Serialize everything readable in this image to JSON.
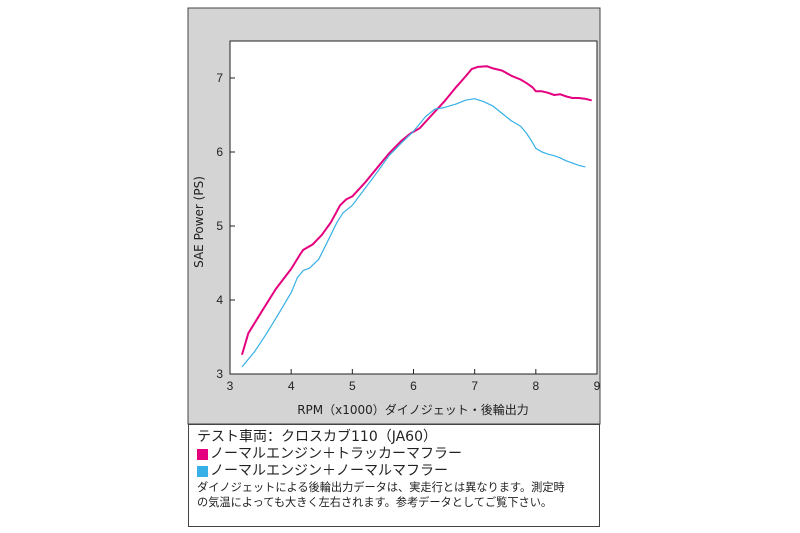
{
  "legend": {
    "title": "テスト車両：クロスカブ110（JA60）",
    "note_line1": "ダイノジェットによる後輪出力データは、実走行とは異なります。測定時",
    "note_line2": "の気温によっても大きく左右されます。参考データとしてご覧下さい。"
  },
  "chart_data": {
    "type": "line",
    "xlabel": "RPM（x1000）ダイノジェット・後輪出力",
    "ylabel": "SAE Power (PS)",
    "xlim": [
      3,
      9
    ],
    "ylim": [
      3,
      7.5
    ],
    "xticks": [
      "3",
      "4",
      "5",
      "6",
      "7",
      "8",
      "9"
    ],
    "yticks": [
      "3",
      "4",
      "5",
      "6",
      "7"
    ],
    "grid": false,
    "legend_position": "bottom",
    "series": [
      {
        "name": "ノーマルエンジン＋トラッカーマフラー",
        "color": "#e4007f",
        "points": [
          [
            3.2,
            3.27
          ],
          [
            3.3,
            3.55
          ],
          [
            3.5,
            3.82
          ],
          [
            3.75,
            4.15
          ],
          [
            4.0,
            4.42
          ],
          [
            4.15,
            4.62
          ],
          [
            4.2,
            4.68
          ],
          [
            4.35,
            4.75
          ],
          [
            4.5,
            4.88
          ],
          [
            4.65,
            5.05
          ],
          [
            4.8,
            5.28
          ],
          [
            4.9,
            5.36
          ],
          [
            5.0,
            5.4
          ],
          [
            5.2,
            5.58
          ],
          [
            5.4,
            5.78
          ],
          [
            5.6,
            5.98
          ],
          [
            5.8,
            6.15
          ],
          [
            5.95,
            6.25
          ],
          [
            6.1,
            6.32
          ],
          [
            6.3,
            6.5
          ],
          [
            6.5,
            6.68
          ],
          [
            6.7,
            6.88
          ],
          [
            6.85,
            7.02
          ],
          [
            6.95,
            7.12
          ],
          [
            7.05,
            7.15
          ],
          [
            7.2,
            7.16
          ],
          [
            7.3,
            7.13
          ],
          [
            7.45,
            7.1
          ],
          [
            7.6,
            7.03
          ],
          [
            7.75,
            6.98
          ],
          [
            7.85,
            6.93
          ],
          [
            7.95,
            6.87
          ],
          [
            8.0,
            6.82
          ],
          [
            8.1,
            6.82
          ],
          [
            8.2,
            6.8
          ],
          [
            8.3,
            6.77
          ],
          [
            8.4,
            6.78
          ],
          [
            8.5,
            6.75
          ],
          [
            8.6,
            6.73
          ],
          [
            8.7,
            6.73
          ],
          [
            8.8,
            6.72
          ],
          [
            8.9,
            6.7
          ]
        ]
      },
      {
        "name": "ノーマルエンジン＋ノーマルマフラー",
        "color": "#36b0e6",
        "points": [
          [
            3.2,
            3.1
          ],
          [
            3.4,
            3.3
          ],
          [
            3.6,
            3.55
          ],
          [
            3.8,
            3.82
          ],
          [
            4.0,
            4.1
          ],
          [
            4.1,
            4.3
          ],
          [
            4.2,
            4.4
          ],
          [
            4.3,
            4.43
          ],
          [
            4.45,
            4.55
          ],
          [
            4.6,
            4.8
          ],
          [
            4.75,
            5.05
          ],
          [
            4.85,
            5.18
          ],
          [
            5.0,
            5.28
          ],
          [
            5.2,
            5.5
          ],
          [
            5.4,
            5.72
          ],
          [
            5.6,
            5.95
          ],
          [
            5.8,
            6.12
          ],
          [
            6.0,
            6.28
          ],
          [
            6.2,
            6.48
          ],
          [
            6.35,
            6.58
          ],
          [
            6.5,
            6.6
          ],
          [
            6.7,
            6.65
          ],
          [
            6.85,
            6.7
          ],
          [
            7.0,
            6.72
          ],
          [
            7.15,
            6.68
          ],
          [
            7.3,
            6.62
          ],
          [
            7.45,
            6.52
          ],
          [
            7.6,
            6.42
          ],
          [
            7.75,
            6.35
          ],
          [
            7.85,
            6.25
          ],
          [
            7.95,
            6.12
          ],
          [
            8.0,
            6.05
          ],
          [
            8.1,
            6.0
          ],
          [
            8.2,
            5.97
          ],
          [
            8.3,
            5.95
          ],
          [
            8.4,
            5.92
          ],
          [
            8.5,
            5.88
          ],
          [
            8.6,
            5.85
          ],
          [
            8.7,
            5.82
          ],
          [
            8.8,
            5.8
          ]
        ]
      }
    ]
  }
}
